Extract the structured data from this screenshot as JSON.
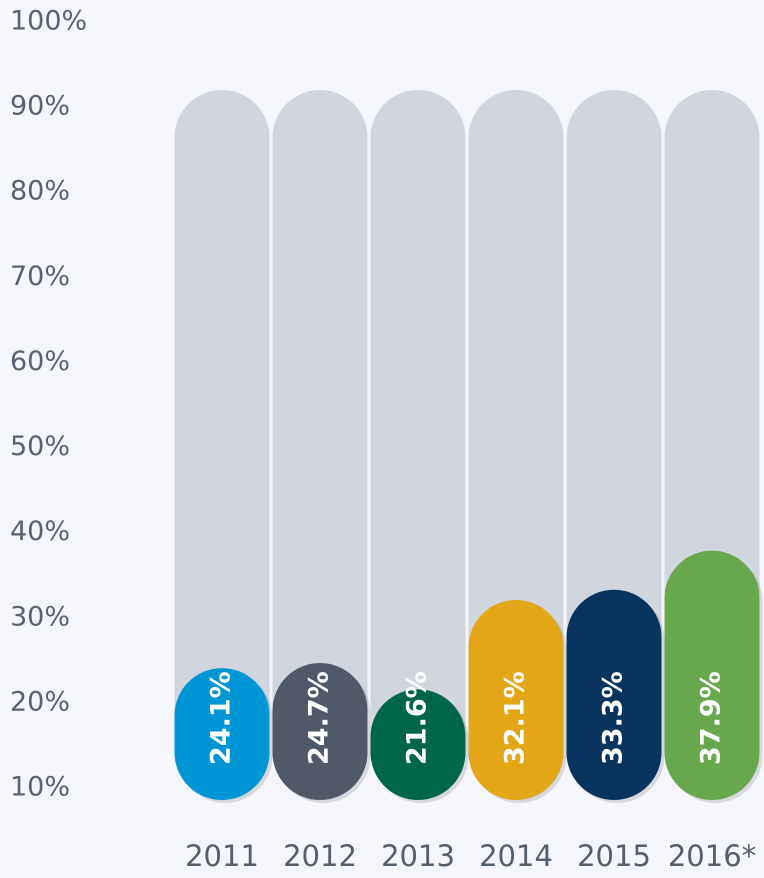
{
  "chart_data": {
    "type": "bar",
    "categories": [
      "2011",
      "2012",
      "2013",
      "2014",
      "2015",
      "2016*"
    ],
    "values": [
      24.1,
      24.7,
      21.6,
      32.1,
      33.3,
      37.9
    ],
    "value_labels": [
      "24.1%",
      "24.7%",
      "21.6%",
      "32.1%",
      "33.3%",
      "37.9%"
    ],
    "colors": [
      "#0096d6",
      "#4f5968",
      "#00664a",
      "#e3a617",
      "#07345e",
      "#68a84c"
    ],
    "ylim": [
      8.6,
      100
    ],
    "yticks": [
      {
        "value": 10,
        "label": "10%"
      },
      {
        "value": 20,
        "label": "20%"
      },
      {
        "value": 30,
        "label": "30%"
      },
      {
        "value": 40,
        "label": "40%"
      },
      {
        "value": 50,
        "label": "50%"
      },
      {
        "value": 60,
        "label": "60%"
      },
      {
        "value": 70,
        "label": "70%"
      },
      {
        "value": 80,
        "label": "80%"
      },
      {
        "value": 90,
        "label": "90%"
      },
      {
        "value": 100,
        "label": "100%"
      }
    ]
  }
}
